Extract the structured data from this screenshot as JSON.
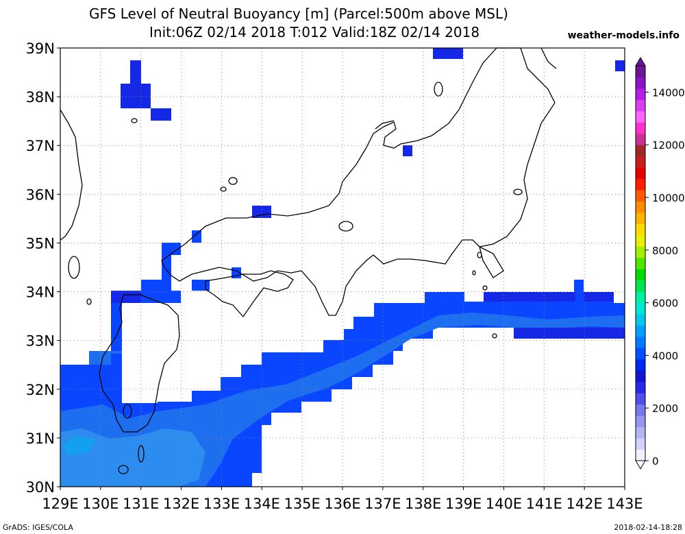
{
  "title": {
    "line1": "GFS Level of Neutral Buoyancy [m] (Parcel:500m above MSL)",
    "line2": "Init:06Z 02/14 2018 T:012 Valid:18Z 02/14 2018"
  },
  "credit": "weather-models.info",
  "footer": {
    "left": "GrADS: IGES/COLA",
    "right": "2018-02-14-18:28"
  },
  "axes": {
    "lat_labels": [
      "39N",
      "38N",
      "37N",
      "36N",
      "35N",
      "34N",
      "33N",
      "32N",
      "31N",
      "30N"
    ],
    "lon_labels": [
      "129E",
      "130E",
      "131E",
      "132E",
      "133E",
      "134E",
      "135E",
      "136E",
      "137E",
      "138E",
      "139E",
      "140E",
      "141E",
      "142E",
      "143E"
    ],
    "lon_range": [
      129,
      143
    ],
    "lat_range": [
      30,
      39
    ]
  },
  "colorbar": {
    "tick_labels": [
      "14000",
      "12000",
      "10000",
      "8000",
      "6000",
      "4000",
      "2000",
      "0"
    ],
    "tick_values": [
      14000,
      12000,
      10000,
      8000,
      6000,
      4000,
      2000,
      0
    ],
    "max_value": 15000,
    "colors": [
      "#f0f0ff",
      "#d2d2fa",
      "#b4b4f5",
      "#9696f0",
      "#7878eb",
      "#5050e6",
      "#2828e6",
      "#1414d2",
      "#0028f0",
      "#0050ff",
      "#0078ff",
      "#00a0ff",
      "#00c8f0",
      "#00e6d2",
      "#00f0a0",
      "#00e650",
      "#00dc00",
      "#50e600",
      "#a0f000",
      "#e6f000",
      "#ffdc00",
      "#ffb400",
      "#ff8c00",
      "#ff5a00",
      "#ff1e00",
      "#e60000",
      "#c81e1e",
      "#a02828",
      "#c83296",
      "#ff32c8",
      "#ff64ff",
      "#dc3cf0",
      "#b41ee6",
      "#8c14c8",
      "#6e1496"
    ]
  },
  "field_colors": {
    "deep": "#1428e6",
    "mid": "#0a46ff",
    "light": "#1e6ef0",
    "pale": "#2d8cf0",
    "cyan": "#14a0f0"
  }
}
